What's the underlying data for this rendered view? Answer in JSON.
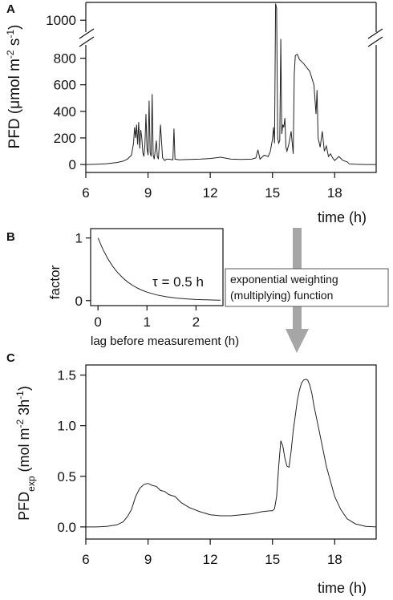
{
  "chart_data": [
    {
      "panel": "A",
      "type": "line",
      "xlabel": "time (h)",
      "ylabel": "PFD (μmol m-2 s-1)",
      "x_ticks": [
        6,
        9,
        12,
        15,
        18
      ],
      "y_ticks_lower": [
        0,
        200,
        400,
        600,
        800
      ],
      "y_ticks_upper": [
        1000
      ],
      "xlim": [
        6,
        20
      ],
      "ylim_lower": [
        -60,
        900
      ],
      "ylim_upper": [
        900,
        1150
      ],
      "axis_break": "y between 800 and 1000",
      "series": [
        {
          "x": [
            6.0,
            6.5,
            7.0,
            7.5,
            7.8,
            8.0,
            8.2,
            8.3,
            8.35,
            8.4,
            8.45,
            8.5,
            8.55,
            8.6,
            8.65,
            8.7,
            8.75,
            8.8,
            8.85,
            8.9,
            8.95,
            9.0,
            9.05,
            9.1,
            9.15,
            9.2,
            9.25,
            9.3,
            9.4,
            9.45,
            9.5,
            9.6,
            9.7,
            9.75,
            9.8,
            9.9,
            10.0,
            10.2,
            10.25,
            10.3,
            10.5,
            11.0,
            11.5,
            12.0,
            12.5,
            13.0,
            13.5,
            14.0,
            14.2,
            14.3,
            14.4,
            14.6,
            14.8,
            14.9,
            15.0,
            15.05,
            15.1,
            15.15,
            15.2,
            15.25,
            15.3,
            15.35,
            15.4,
            15.45,
            15.5,
            15.55,
            15.6,
            15.65,
            15.7,
            15.8,
            15.9,
            16.0,
            16.05,
            16.1,
            16.2,
            16.3,
            16.5,
            16.7,
            16.8,
            16.9,
            17.0,
            17.1,
            17.15,
            17.2,
            17.3,
            17.4,
            17.5,
            17.6,
            17.7,
            17.8,
            17.9,
            18.0,
            18.2,
            18.4,
            18.6,
            18.7,
            19.0,
            19.5,
            20.0
          ],
          "y": [
            0,
            2,
            6,
            15,
            25,
            40,
            70,
            160,
            280,
            200,
            300,
            150,
            320,
            120,
            260,
            200,
            90,
            60,
            150,
            380,
            120,
            70,
            480,
            90,
            60,
            530,
            70,
            40,
            180,
            60,
            40,
            300,
            50,
            40,
            30,
            40,
            40,
            35,
            270,
            40,
            35,
            38,
            40,
            45,
            55,
            40,
            38,
            40,
            50,
            110,
            40,
            70,
            60,
            100,
            190,
            280,
            160,
            1140,
            1100,
            200,
            160,
            180,
            900,
            230,
            300,
            280,
            350,
            130,
            100,
            160,
            250,
            80,
            680,
            820,
            830,
            790,
            760,
            720,
            700,
            650,
            600,
            380,
            560,
            200,
            130,
            250,
            100,
            140,
            60,
            80,
            50,
            30,
            60,
            30,
            20,
            5,
            2,
            0,
            0
          ]
        }
      ]
    },
    {
      "panel": "B",
      "type": "line",
      "xlabel": "lag before measurement (h)",
      "ylabel": "factor",
      "x_ticks": [
        0,
        1,
        2
      ],
      "y_ticks": [
        0,
        1
      ],
      "xlim": [
        -0.15,
        2.55
      ],
      "ylim": [
        -0.08,
        1.15
      ],
      "annotation": "τ = 0.5 h",
      "series": [
        {
          "x": [
            0,
            0.1,
            0.2,
            0.3,
            0.4,
            0.5,
            0.6,
            0.7,
            0.8,
            0.9,
            1.0,
            1.2,
            1.4,
            1.6,
            1.8,
            2.0,
            2.2,
            2.4,
            2.5
          ],
          "y": [
            1.0,
            0.819,
            0.67,
            0.549,
            0.449,
            0.368,
            0.301,
            0.247,
            0.202,
            0.165,
            0.135,
            0.091,
            0.061,
            0.041,
            0.027,
            0.018,
            0.012,
            0.008,
            0.007
          ]
        }
      ]
    },
    {
      "panel": "C",
      "type": "line",
      "xlabel": "time (h)",
      "ylabel": "PFDexp (mol m-2 3h-1)",
      "x_ticks": [
        6,
        9,
        12,
        15,
        18
      ],
      "y_ticks": [
        0.0,
        0.5,
        1.0,
        1.5
      ],
      "xlim": [
        6,
        20
      ],
      "ylim": [
        -0.12,
        1.6
      ],
      "series": [
        {
          "x": [
            6.0,
            6.5,
            7.0,
            7.5,
            7.8,
            8.0,
            8.2,
            8.4,
            8.6,
            8.8,
            9.0,
            9.2,
            9.4,
            9.6,
            9.8,
            10.0,
            10.3,
            10.6,
            11.0,
            11.5,
            12.0,
            12.5,
            13.0,
            13.5,
            14.0,
            14.5,
            14.9,
            15.0,
            15.1,
            15.2,
            15.3,
            15.4,
            15.5,
            15.6,
            15.7,
            15.8,
            15.9,
            16.0,
            16.1,
            16.2,
            16.3,
            16.4,
            16.5,
            16.6,
            16.7,
            16.8,
            16.9,
            17.0,
            17.2,
            17.4,
            17.6,
            17.8,
            18.0,
            18.3,
            18.6,
            19.0,
            19.5,
            20.0
          ],
          "y": [
            0.0,
            0.0,
            0.005,
            0.02,
            0.05,
            0.1,
            0.17,
            0.3,
            0.38,
            0.42,
            0.43,
            0.41,
            0.4,
            0.36,
            0.35,
            0.32,
            0.3,
            0.24,
            0.19,
            0.15,
            0.12,
            0.11,
            0.11,
            0.12,
            0.13,
            0.15,
            0.16,
            0.16,
            0.18,
            0.3,
            0.6,
            0.85,
            0.8,
            0.68,
            0.6,
            0.59,
            0.75,
            0.95,
            1.1,
            1.25,
            1.35,
            1.42,
            1.45,
            1.46,
            1.45,
            1.4,
            1.32,
            1.2,
            1.0,
            0.8,
            0.6,
            0.45,
            0.3,
            0.17,
            0.08,
            0.03,
            0.005,
            0.0
          ]
        }
      ]
    }
  ],
  "labels": {
    "panel_a": "A",
    "panel_b": "B",
    "panel_c": "C",
    "a_ylabel": "PFD (μmol m",
    "a_ylabel_sup1": "-2",
    "a_ylabel_mid": " s",
    "a_ylabel_sup2": "-1",
    "a_ylabel_end": ")",
    "a_xlabel": "time (h)",
    "b_ylabel": "factor",
    "b_xlabel": "lag before measurement (h)",
    "b_annotation": "τ = 0.5 h",
    "callout_line1": "exponential weighting",
    "callout_line2": "(multiplying) function",
    "c_ylabel_main": "PFD",
    "c_ylabel_sub": "exp",
    "c_ylabel_rest": " (mol m",
    "c_ylabel_sup1": "-2",
    "c_ylabel_mid": " 3h",
    "c_ylabel_sup2": "-1",
    "c_ylabel_end": ")",
    "c_xlabel": "time (h)"
  },
  "colors": {
    "line": "#222222",
    "arrow": "#a6a6a6"
  }
}
